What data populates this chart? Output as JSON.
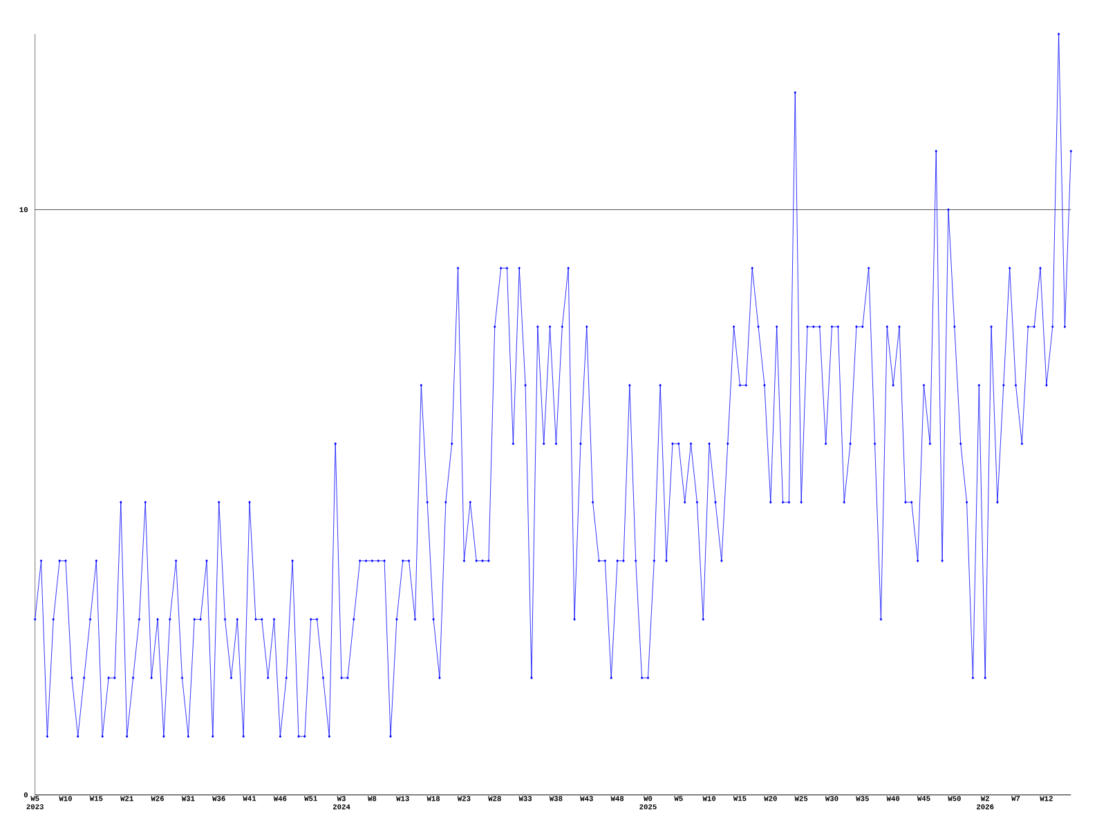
{
  "chart_data": {
    "type": "line",
    "categories": [
      "W5 2023",
      null,
      null,
      null,
      null,
      "W10",
      null,
      null,
      null,
      null,
      "W15",
      null,
      null,
      null,
      null,
      "W21",
      null,
      null,
      null,
      null,
      "W26",
      null,
      null,
      null,
      null,
      "W31",
      null,
      null,
      null,
      null,
      "W36",
      null,
      null,
      null,
      null,
      "W41",
      null,
      null,
      null,
      null,
      "W46",
      null,
      null,
      null,
      null,
      "W51",
      null,
      null,
      null,
      null,
      "W3 2024",
      null,
      null,
      null,
      null,
      "W8",
      null,
      null,
      null,
      null,
      "W13",
      null,
      null,
      null,
      null,
      "W18",
      null,
      null,
      null,
      null,
      "W23",
      null,
      null,
      null,
      null,
      "W28",
      null,
      null,
      null,
      null,
      "W33",
      null,
      null,
      null,
      null,
      "W38",
      null,
      null,
      null,
      null,
      "W43",
      null,
      null,
      null,
      null,
      "W48",
      null,
      null,
      null,
      null,
      "W0 2025",
      null,
      null,
      null,
      null,
      "W5",
      null,
      null,
      null,
      null,
      "W10",
      null,
      null,
      null,
      null,
      "W15",
      null,
      null,
      null,
      null,
      "W20",
      null,
      null,
      null,
      null,
      "W25",
      null,
      null,
      null,
      null,
      "W30",
      null,
      null,
      null,
      null,
      "W35",
      null,
      null,
      null,
      null,
      "W40",
      null,
      null,
      null,
      null,
      "W45",
      null,
      null,
      null,
      null,
      "W50",
      null,
      null,
      null,
      null,
      "W2 2026",
      null,
      null,
      null,
      null,
      "W7",
      null,
      null,
      null,
      null,
      "W12",
      null,
      null,
      null,
      null
    ],
    "values": [
      3,
      4,
      1,
      3,
      4,
      4,
      2,
      1,
      2,
      3,
      4,
      1,
      2,
      2,
      5,
      1,
      2,
      3,
      5,
      2,
      3,
      1,
      3,
      4,
      2,
      1,
      3,
      3,
      4,
      1,
      5,
      3,
      2,
      3,
      1,
      5,
      3,
      3,
      2,
      3,
      1,
      2,
      4,
      1,
      1,
      3,
      3,
      2,
      1,
      6,
      2,
      2,
      3,
      4,
      4,
      4,
      4,
      4,
      1,
      3,
      4,
      4,
      3,
      7,
      5,
      3,
      2,
      5,
      6,
      9,
      4,
      5,
      4,
      4,
      4,
      8,
      9,
      9,
      6,
      9,
      7,
      2,
      8,
      6,
      8,
      6,
      8,
      9,
      3,
      6,
      8,
      5,
      4,
      4,
      2,
      4,
      4,
      7,
      4,
      2,
      2,
      4,
      7,
      4,
      6,
      6,
      5,
      6,
      5,
      3,
      6,
      5,
      4,
      6,
      8,
      7,
      7,
      9,
      8,
      7,
      5,
      8,
      5,
      5,
      12,
      5,
      8,
      8,
      8,
      6,
      8,
      8,
      5,
      6,
      8,
      8,
      9,
      6,
      3,
      8,
      7,
      8,
      5,
      5,
      4,
      7,
      6,
      11,
      4,
      10,
      8,
      6,
      5,
      2,
      7,
      2,
      8,
      5,
      7,
      9,
      7,
      6,
      8,
      8,
      9,
      7,
      8,
      13,
      8,
      11
    ],
    "color": "#0000ff",
    "ylim": [
      0,
      13
    ],
    "yticks": [
      0,
      10
    ],
    "grid": "y",
    "marker": "diamond",
    "line_style": "solid"
  }
}
